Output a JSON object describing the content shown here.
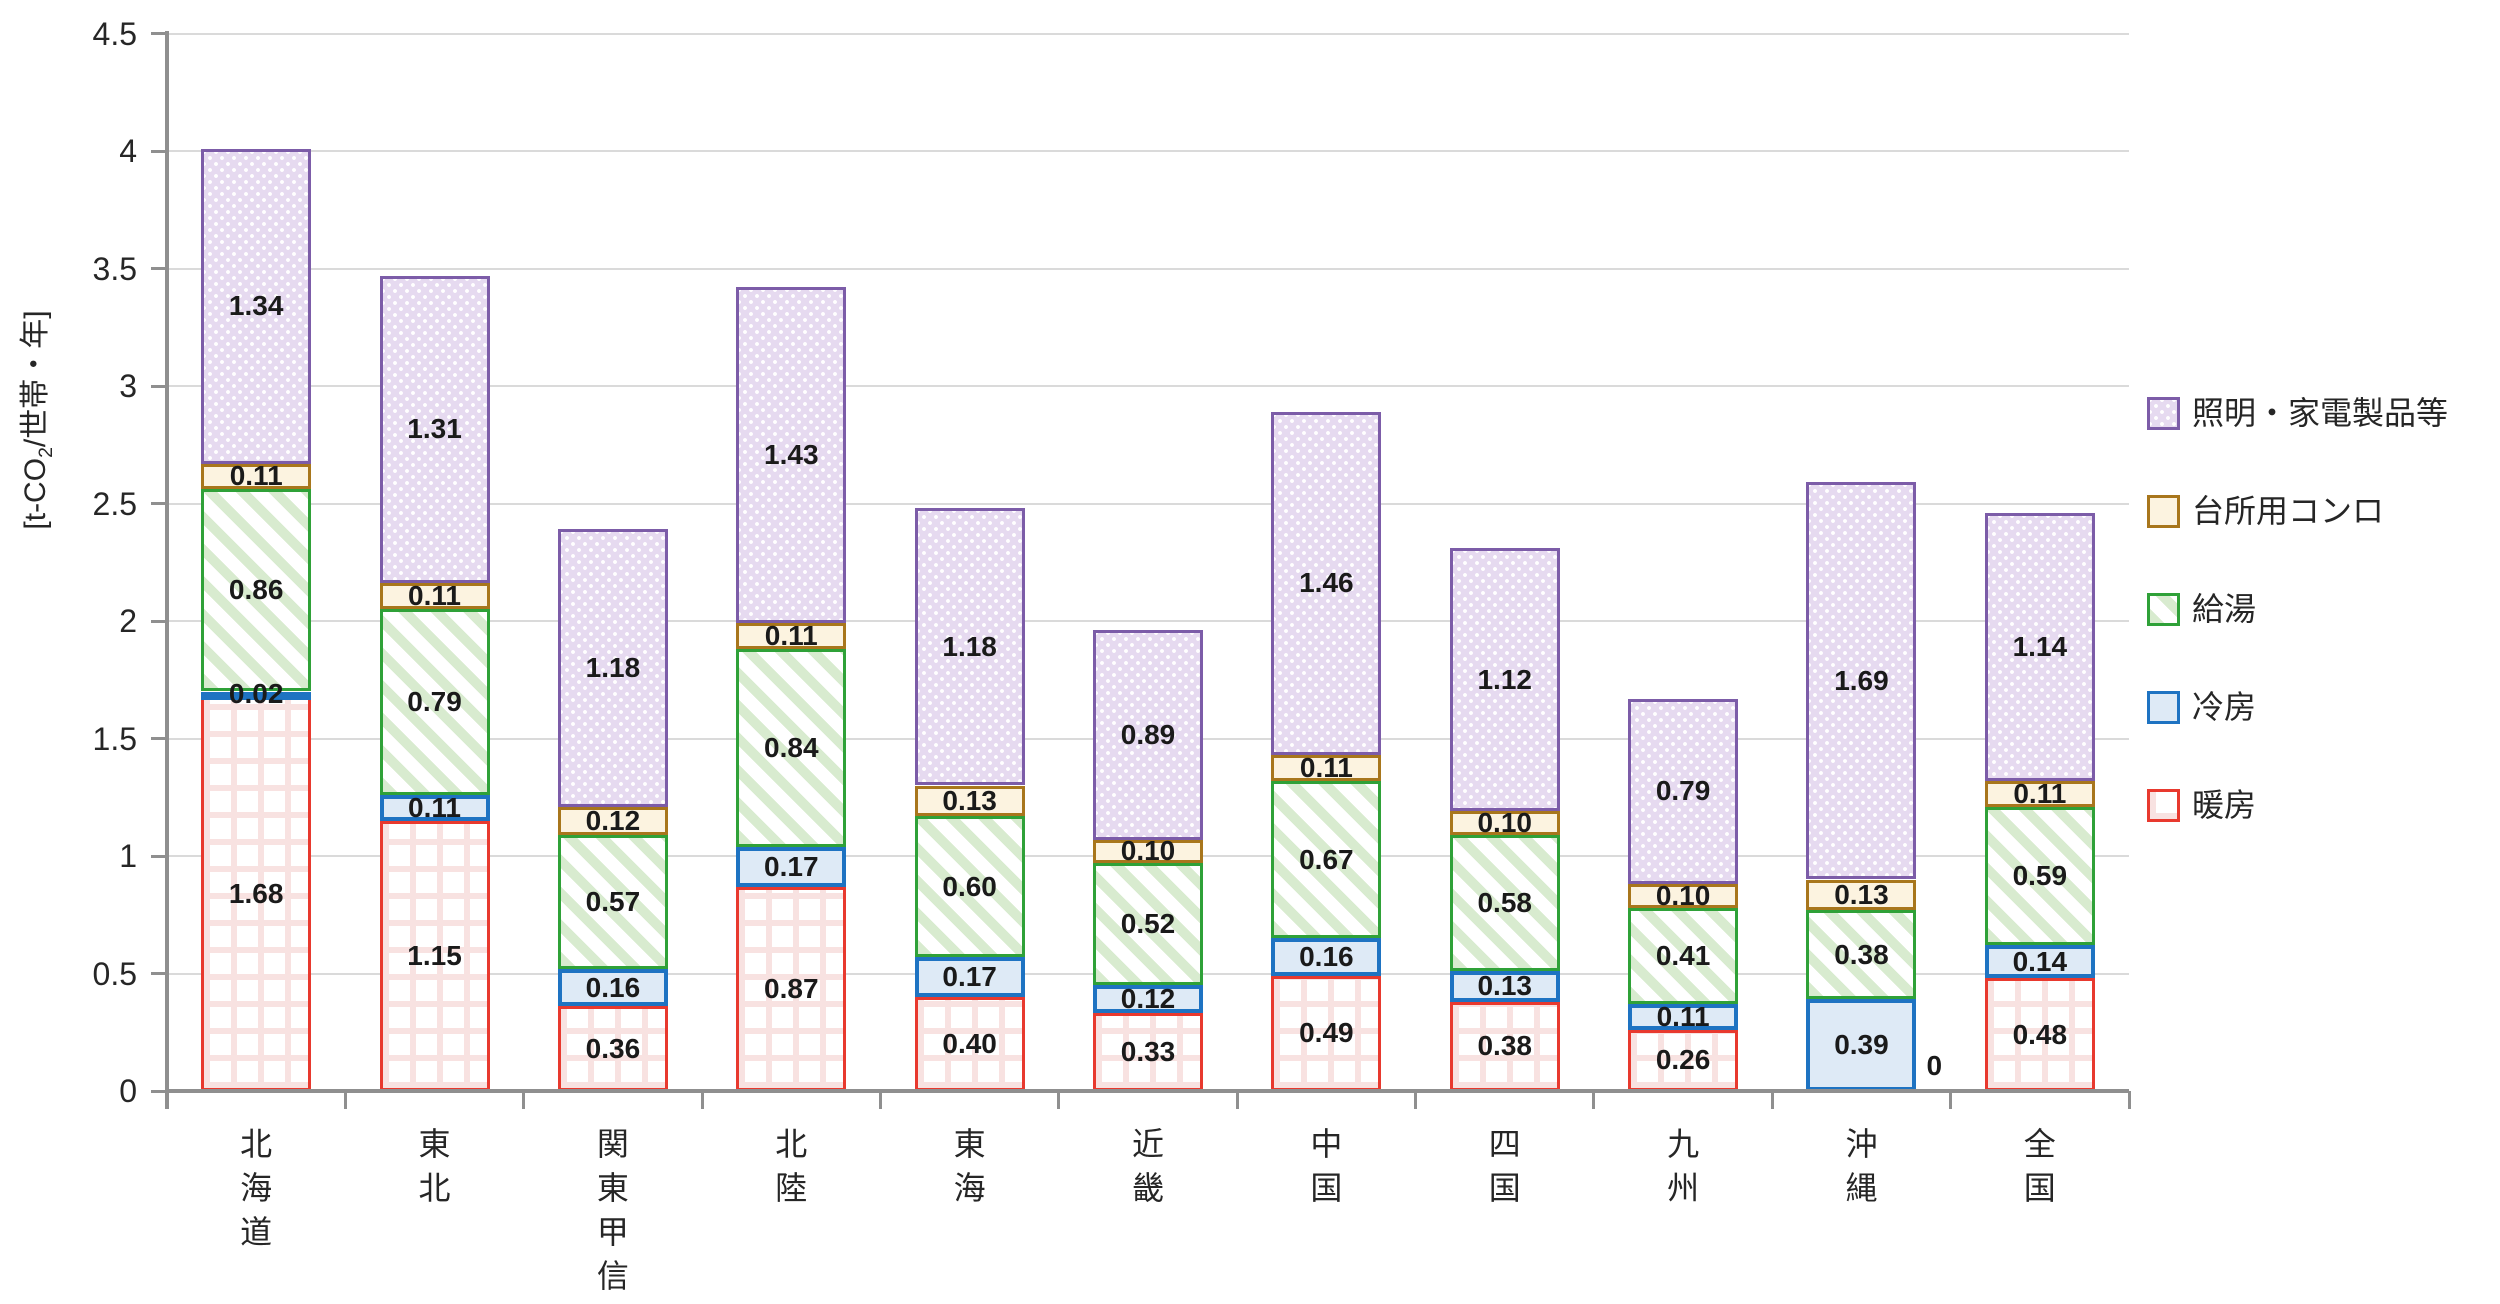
{
  "chart_data": {
    "type": "bar",
    "stacked": true,
    "title": "",
    "grid": true,
    "legend_position": "right",
    "y_axis": {
      "title_prefix": "[t-CO",
      "title_sub": "2",
      "title_suffix": "/世帯・年]",
      "min": 0,
      "max": 4.5,
      "step": 0.5,
      "tick_labels": [
        "0",
        "0.5",
        "1",
        "1.5",
        "2",
        "2.5",
        "3",
        "3.5",
        "4",
        "4.5"
      ]
    },
    "categories": [
      "北海道",
      "東北",
      "関東甲信",
      "北陸",
      "東海",
      "近畿",
      "中国",
      "四国",
      "九州",
      "沖縄",
      "全国"
    ],
    "series_bottom_to_top": [
      {
        "name": "暖房",
        "values": [
          1.68,
          1.15,
          0.36,
          0.87,
          0.4,
          0.33,
          0.49,
          0.38,
          0.26,
          0,
          0.48
        ],
        "pattern": "grid",
        "fill": "#FFFFFF",
        "pattern_color": "#F8E2E1",
        "border": "#E8392E"
      },
      {
        "name": "冷房",
        "values": [
          0.02,
          0.11,
          0.16,
          0.17,
          0.17,
          0.12,
          0.16,
          0.13,
          0.11,
          0.39,
          0.14
        ],
        "pattern": "solid",
        "fill": "#DEEAF6",
        "pattern_color": "",
        "border": "#1E73C2"
      },
      {
        "name": "給湯",
        "values": [
          0.86,
          0.79,
          0.57,
          0.84,
          0.6,
          0.52,
          0.67,
          0.58,
          0.41,
          0.38,
          0.59
        ],
        "pattern": "diagonal-stripes",
        "fill": "#FFFFFF",
        "pattern_color": "#D8EBCF",
        "border": "#2FA138"
      },
      {
        "name": "台所用コンロ",
        "values": [
          0.11,
          0.11,
          0.12,
          0.11,
          0.13,
          0.1,
          0.11,
          0.1,
          0.1,
          0.13,
          0.11
        ],
        "pattern": "solid",
        "fill": "#FCF3E0",
        "pattern_color": "",
        "border": "#A8761C"
      },
      {
        "name": "照明・家電製品等",
        "values": [
          1.34,
          1.31,
          1.18,
          1.43,
          1.18,
          0.89,
          1.46,
          1.12,
          0.79,
          1.69,
          1.14
        ],
        "pattern": "dots",
        "fill": "#E6DAF0",
        "pattern_color": "#FFFFFF",
        "border": "#7C5CA8"
      }
    ],
    "zero_value_label": "0",
    "axis_color": "#8F8F8F",
    "gridline_color": "#DADADA",
    "text_color": "#262626"
  }
}
